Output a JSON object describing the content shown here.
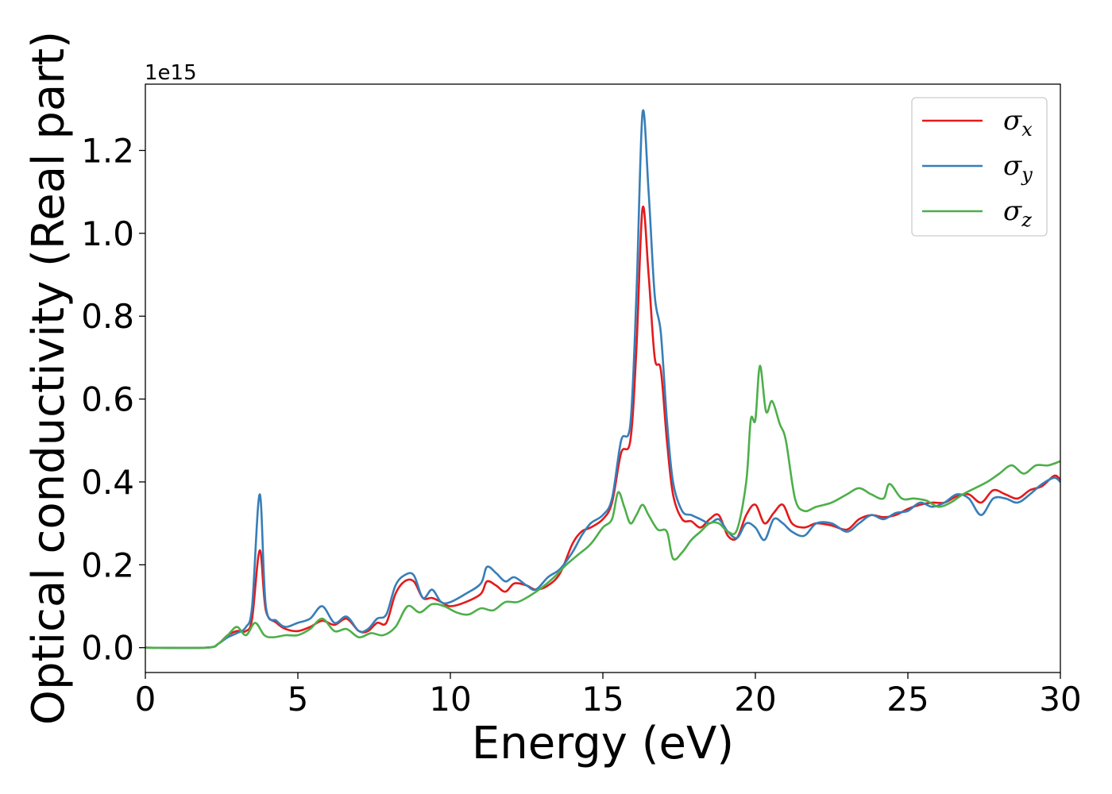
{
  "chart_data": {
    "type": "line",
    "title": "",
    "xlabel": "Energy (eV)",
    "ylabel": "Optical conductivity (Real part)",
    "y_offset_text": "1e15",
    "xlim": [
      0,
      30
    ],
    "ylim": [
      -0.06,
      1.36
    ],
    "x_ticks": [
      0,
      5,
      10,
      15,
      20,
      25,
      30
    ],
    "y_ticks": [
      0.0,
      0.2,
      0.4,
      0.6,
      0.8,
      1.0,
      1.2
    ],
    "y_tick_labels": [
      "0.0",
      "0.2",
      "0.4",
      "0.6",
      "0.8",
      "1.0",
      "1.2"
    ],
    "grid": false,
    "legend_position": "top-right",
    "series": [
      {
        "name": "σ",
        "subscript": "x",
        "color": "#e41a1c",
        "points": [
          [
            0,
            0
          ],
          [
            2,
            0
          ],
          [
            2.4,
            0.01
          ],
          [
            2.7,
            0.03
          ],
          [
            3.0,
            0.04
          ],
          [
            3.3,
            0.04
          ],
          [
            3.5,
            0.07
          ],
          [
            3.75,
            0.235
          ],
          [
            3.95,
            0.09
          ],
          [
            4.3,
            0.06
          ],
          [
            4.6,
            0.045
          ],
          [
            5.0,
            0.04
          ],
          [
            5.4,
            0.05
          ],
          [
            5.8,
            0.065
          ],
          [
            6.2,
            0.055
          ],
          [
            6.6,
            0.07
          ],
          [
            7.0,
            0.04
          ],
          [
            7.3,
            0.04
          ],
          [
            7.6,
            0.06
          ],
          [
            7.9,
            0.06
          ],
          [
            8.2,
            0.13
          ],
          [
            8.5,
            0.16
          ],
          [
            8.8,
            0.16
          ],
          [
            9.1,
            0.12
          ],
          [
            9.4,
            0.12
          ],
          [
            9.7,
            0.11
          ],
          [
            10.0,
            0.1
          ],
          [
            10.5,
            0.11
          ],
          [
            11.0,
            0.13
          ],
          [
            11.2,
            0.16
          ],
          [
            11.5,
            0.15
          ],
          [
            11.8,
            0.135
          ],
          [
            12.1,
            0.155
          ],
          [
            12.5,
            0.15
          ],
          [
            12.8,
            0.14
          ],
          [
            13.2,
            0.15
          ],
          [
            13.6,
            0.18
          ],
          [
            14.0,
            0.25
          ],
          [
            14.3,
            0.28
          ],
          [
            14.6,
            0.29
          ],
          [
            15.0,
            0.31
          ],
          [
            15.3,
            0.35
          ],
          [
            15.6,
            0.47
          ],
          [
            15.9,
            0.5
          ],
          [
            16.1,
            0.72
          ],
          [
            16.3,
            1.06
          ],
          [
            16.5,
            0.9
          ],
          [
            16.7,
            0.7
          ],
          [
            16.9,
            0.67
          ],
          [
            17.1,
            0.5
          ],
          [
            17.3,
            0.37
          ],
          [
            17.6,
            0.31
          ],
          [
            17.9,
            0.305
          ],
          [
            18.2,
            0.29
          ],
          [
            18.5,
            0.31
          ],
          [
            18.8,
            0.32
          ],
          [
            19.1,
            0.27
          ],
          [
            19.4,
            0.265
          ],
          [
            19.7,
            0.32
          ],
          [
            20.0,
            0.345
          ],
          [
            20.3,
            0.3
          ],
          [
            20.6,
            0.325
          ],
          [
            20.9,
            0.345
          ],
          [
            21.2,
            0.3
          ],
          [
            21.6,
            0.29
          ],
          [
            22.0,
            0.3
          ],
          [
            22.5,
            0.295
          ],
          [
            23.0,
            0.285
          ],
          [
            23.4,
            0.31
          ],
          [
            23.8,
            0.32
          ],
          [
            24.2,
            0.315
          ],
          [
            24.6,
            0.32
          ],
          [
            25.0,
            0.335
          ],
          [
            25.4,
            0.345
          ],
          [
            25.8,
            0.35
          ],
          [
            26.2,
            0.35
          ],
          [
            26.6,
            0.365
          ],
          [
            27.0,
            0.37
          ],
          [
            27.4,
            0.35
          ],
          [
            27.8,
            0.38
          ],
          [
            28.2,
            0.37
          ],
          [
            28.6,
            0.36
          ],
          [
            29.0,
            0.38
          ],
          [
            29.4,
            0.39
          ],
          [
            29.8,
            0.415
          ],
          [
            30.0,
            0.405
          ]
        ]
      },
      {
        "name": "σ",
        "subscript": "y",
        "color": "#377eb8",
        "points": [
          [
            0,
            0
          ],
          [
            2,
            0
          ],
          [
            2.4,
            0.01
          ],
          [
            2.7,
            0.025
          ],
          [
            3.0,
            0.035
          ],
          [
            3.3,
            0.05
          ],
          [
            3.5,
            0.1
          ],
          [
            3.75,
            0.37
          ],
          [
            3.95,
            0.1
          ],
          [
            4.3,
            0.065
          ],
          [
            4.6,
            0.05
          ],
          [
            5.0,
            0.06
          ],
          [
            5.4,
            0.07
          ],
          [
            5.8,
            0.1
          ],
          [
            6.2,
            0.06
          ],
          [
            6.6,
            0.075
          ],
          [
            7.0,
            0.04
          ],
          [
            7.3,
            0.045
          ],
          [
            7.6,
            0.07
          ],
          [
            7.9,
            0.08
          ],
          [
            8.2,
            0.15
          ],
          [
            8.5,
            0.175
          ],
          [
            8.8,
            0.175
          ],
          [
            9.1,
            0.12
          ],
          [
            9.4,
            0.14
          ],
          [
            9.7,
            0.11
          ],
          [
            10.0,
            0.11
          ],
          [
            10.5,
            0.13
          ],
          [
            11.0,
            0.155
          ],
          [
            11.2,
            0.195
          ],
          [
            11.5,
            0.18
          ],
          [
            11.8,
            0.16
          ],
          [
            12.1,
            0.17
          ],
          [
            12.5,
            0.15
          ],
          [
            12.8,
            0.14
          ],
          [
            13.2,
            0.17
          ],
          [
            13.6,
            0.19
          ],
          [
            14.0,
            0.23
          ],
          [
            14.3,
            0.27
          ],
          [
            14.6,
            0.3
          ],
          [
            15.0,
            0.32
          ],
          [
            15.3,
            0.36
          ],
          [
            15.6,
            0.5
          ],
          [
            15.9,
            0.54
          ],
          [
            16.1,
            0.85
          ],
          [
            16.3,
            1.29
          ],
          [
            16.5,
            1.1
          ],
          [
            16.7,
            0.85
          ],
          [
            16.9,
            0.76
          ],
          [
            17.1,
            0.55
          ],
          [
            17.3,
            0.4
          ],
          [
            17.6,
            0.33
          ],
          [
            17.9,
            0.32
          ],
          [
            18.2,
            0.31
          ],
          [
            18.5,
            0.3
          ],
          [
            18.8,
            0.31
          ],
          [
            19.1,
            0.28
          ],
          [
            19.4,
            0.265
          ],
          [
            19.7,
            0.3
          ],
          [
            20.0,
            0.29
          ],
          [
            20.3,
            0.26
          ],
          [
            20.6,
            0.31
          ],
          [
            20.9,
            0.3
          ],
          [
            21.2,
            0.28
          ],
          [
            21.6,
            0.27
          ],
          [
            22.0,
            0.3
          ],
          [
            22.5,
            0.3
          ],
          [
            23.0,
            0.28
          ],
          [
            23.4,
            0.3
          ],
          [
            23.8,
            0.32
          ],
          [
            24.2,
            0.31
          ],
          [
            24.6,
            0.325
          ],
          [
            25.0,
            0.33
          ],
          [
            25.4,
            0.35
          ],
          [
            25.8,
            0.34
          ],
          [
            26.2,
            0.35
          ],
          [
            26.6,
            0.37
          ],
          [
            27.0,
            0.36
          ],
          [
            27.4,
            0.32
          ],
          [
            27.8,
            0.36
          ],
          [
            28.2,
            0.36
          ],
          [
            28.6,
            0.35
          ],
          [
            29.0,
            0.37
          ],
          [
            29.4,
            0.395
          ],
          [
            29.8,
            0.41
          ],
          [
            30.0,
            0.4
          ]
        ]
      },
      {
        "name": "σ",
        "subscript": "z",
        "color": "#4daf4a",
        "points": [
          [
            0,
            0
          ],
          [
            2,
            0
          ],
          [
            2.4,
            0.01
          ],
          [
            2.7,
            0.03
          ],
          [
            3.0,
            0.05
          ],
          [
            3.3,
            0.03
          ],
          [
            3.6,
            0.06
          ],
          [
            3.9,
            0.03
          ],
          [
            4.2,
            0.025
          ],
          [
            4.6,
            0.03
          ],
          [
            5.0,
            0.03
          ],
          [
            5.4,
            0.045
          ],
          [
            5.8,
            0.07
          ],
          [
            6.2,
            0.04
          ],
          [
            6.6,
            0.045
          ],
          [
            7.0,
            0.025
          ],
          [
            7.4,
            0.035
          ],
          [
            7.8,
            0.03
          ],
          [
            8.2,
            0.05
          ],
          [
            8.6,
            0.1
          ],
          [
            9.0,
            0.085
          ],
          [
            9.4,
            0.105
          ],
          [
            9.8,
            0.1
          ],
          [
            10.2,
            0.085
          ],
          [
            10.6,
            0.08
          ],
          [
            11.0,
            0.095
          ],
          [
            11.4,
            0.09
          ],
          [
            11.8,
            0.11
          ],
          [
            12.2,
            0.11
          ],
          [
            12.6,
            0.125
          ],
          [
            13.0,
            0.145
          ],
          [
            13.4,
            0.17
          ],
          [
            13.8,
            0.2
          ],
          [
            14.2,
            0.225
          ],
          [
            14.6,
            0.25
          ],
          [
            15.0,
            0.29
          ],
          [
            15.3,
            0.31
          ],
          [
            15.5,
            0.375
          ],
          [
            15.7,
            0.34
          ],
          [
            15.9,
            0.3
          ],
          [
            16.1,
            0.32
          ],
          [
            16.3,
            0.345
          ],
          [
            16.5,
            0.32
          ],
          [
            16.8,
            0.285
          ],
          [
            17.1,
            0.28
          ],
          [
            17.3,
            0.215
          ],
          [
            17.6,
            0.23
          ],
          [
            17.9,
            0.26
          ],
          [
            18.2,
            0.28
          ],
          [
            18.5,
            0.3
          ],
          [
            18.8,
            0.3
          ],
          [
            19.1,
            0.28
          ],
          [
            19.4,
            0.285
          ],
          [
            19.7,
            0.4
          ],
          [
            19.85,
            0.55
          ],
          [
            20.0,
            0.55
          ],
          [
            20.15,
            0.68
          ],
          [
            20.35,
            0.57
          ],
          [
            20.55,
            0.595
          ],
          [
            20.8,
            0.54
          ],
          [
            21.0,
            0.5
          ],
          [
            21.3,
            0.36
          ],
          [
            21.6,
            0.33
          ],
          [
            22.0,
            0.34
          ],
          [
            22.5,
            0.35
          ],
          [
            23.0,
            0.37
          ],
          [
            23.4,
            0.385
          ],
          [
            23.8,
            0.37
          ],
          [
            24.2,
            0.36
          ],
          [
            24.4,
            0.395
          ],
          [
            24.8,
            0.36
          ],
          [
            25.2,
            0.36
          ],
          [
            25.6,
            0.355
          ],
          [
            26.0,
            0.34
          ],
          [
            26.4,
            0.35
          ],
          [
            26.8,
            0.37
          ],
          [
            27.2,
            0.385
          ],
          [
            27.6,
            0.4
          ],
          [
            28.0,
            0.42
          ],
          [
            28.4,
            0.44
          ],
          [
            28.8,
            0.42
          ],
          [
            29.2,
            0.44
          ],
          [
            29.6,
            0.44
          ],
          [
            30.0,
            0.45
          ]
        ]
      }
    ]
  }
}
